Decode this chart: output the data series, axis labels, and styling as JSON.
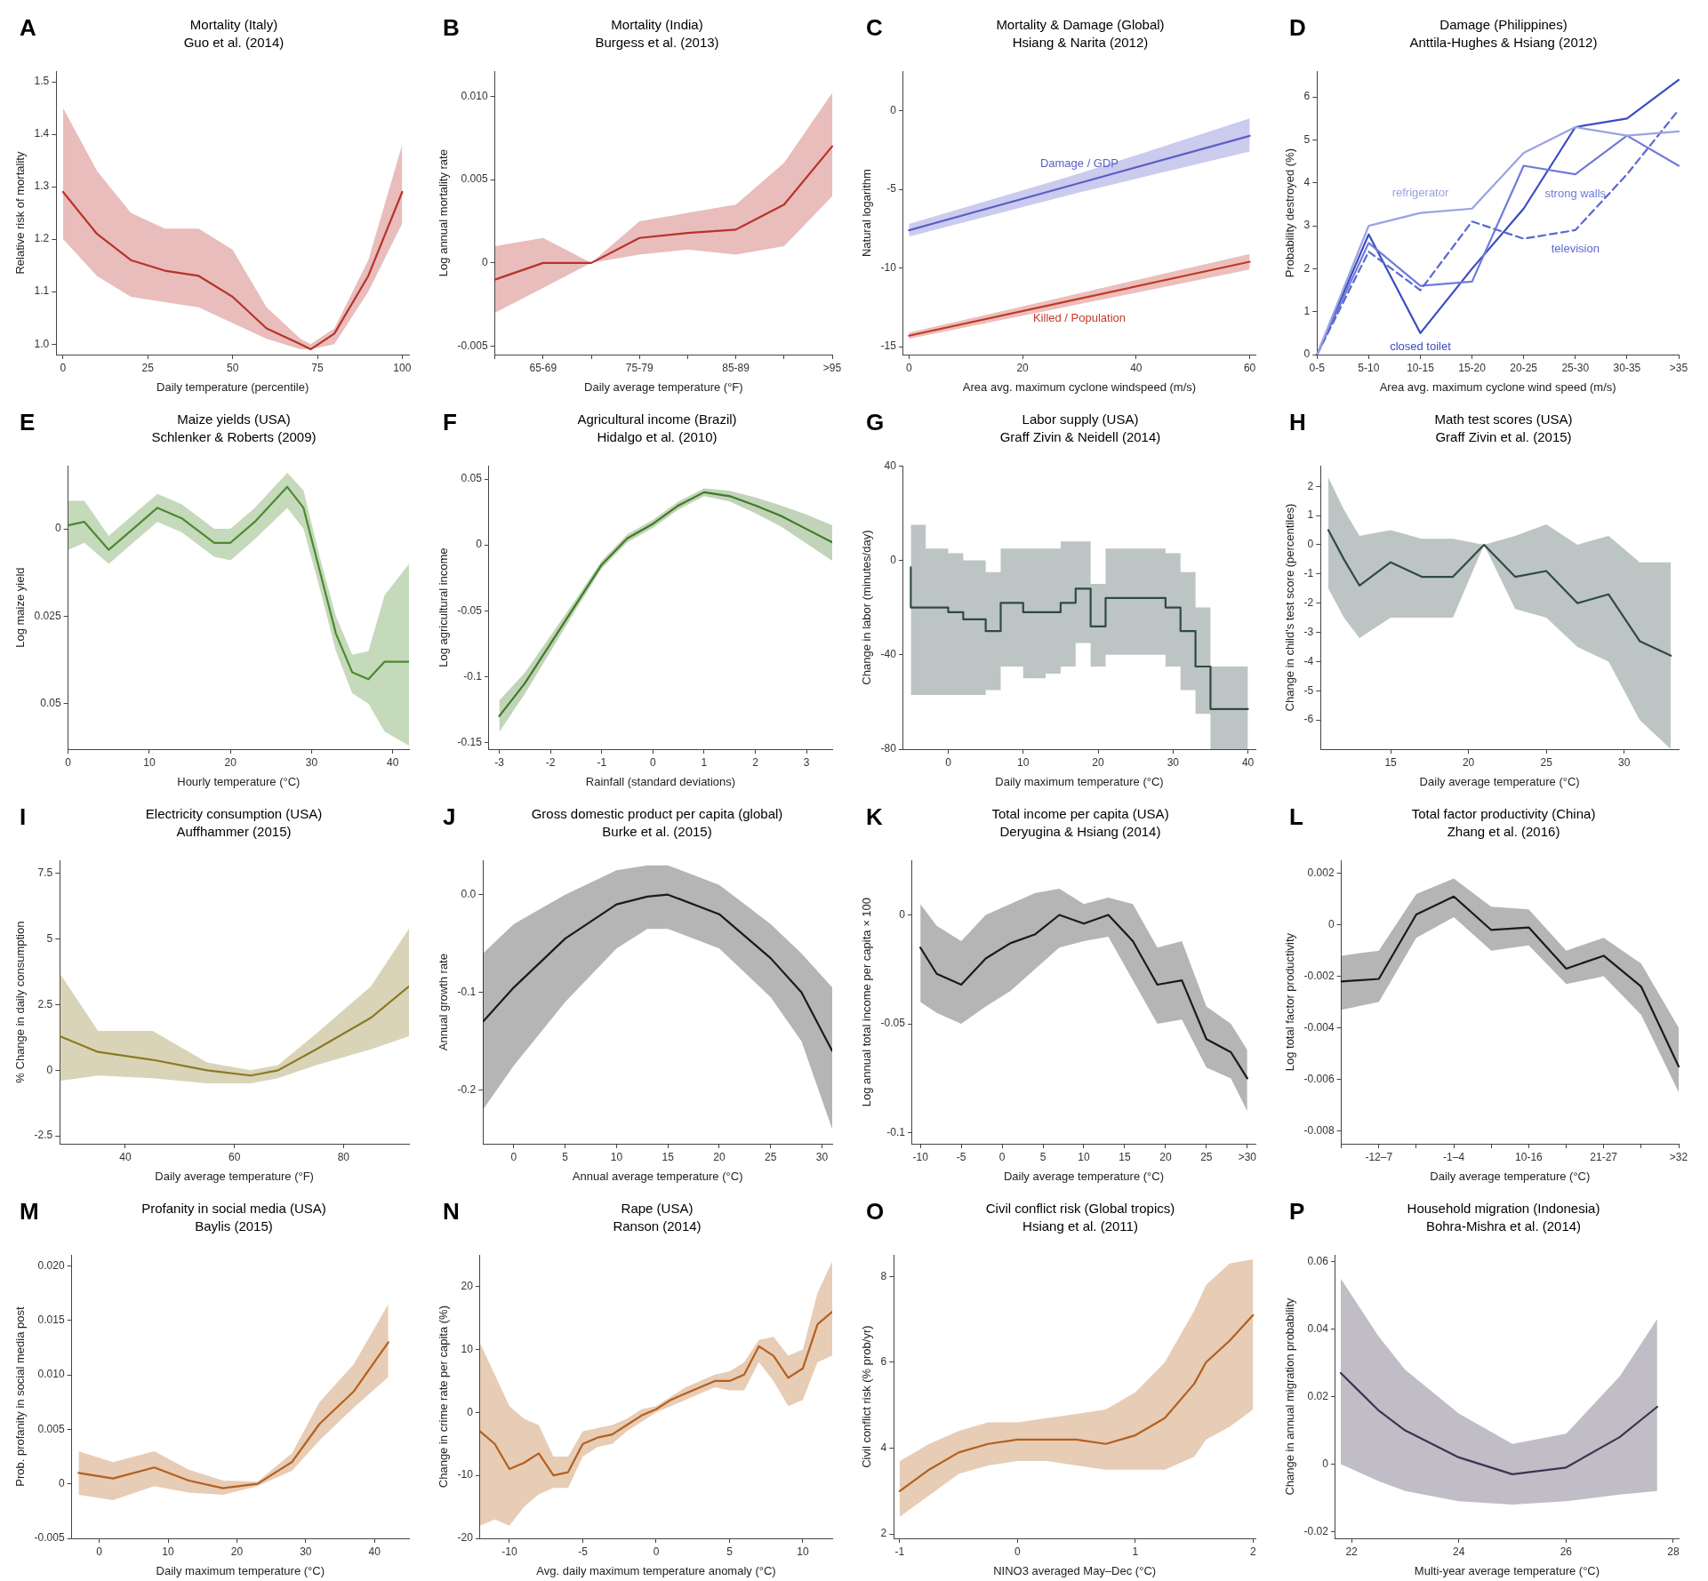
{
  "chart_data": [
    {
      "type": "line",
      "title": "Mortality (Italy)",
      "subtitle": "Guo et al. (2014)",
      "xlabel": "Daily temperature (percentile)",
      "ylabel": "Relative risk of mortality",
      "annotations": [
        "A"
      ],
      "x": [
        0,
        10,
        20,
        30,
        40,
        50,
        60,
        70,
        73,
        80,
        90,
        100
      ],
      "xlim": [
        -2,
        102
      ],
      "xticks": [
        0,
        25,
        50,
        75,
        100
      ],
      "ylim": [
        0.98,
        1.52
      ],
      "yticks": [
        {
          "value": 1,
          "label": "1.0"
        },
        1.1,
        1.2,
        1.3,
        1.4,
        1.5
      ],
      "series": [
        {
          "color": "#b8322c",
          "values": [
            1.29,
            1.21,
            1.16,
            1.14,
            1.13,
            1.09,
            1.03,
            1.0,
            0.99,
            1.02,
            1.13,
            1.29
          ],
          "lower": [
            1.2,
            1.13,
            1.09,
            1.08,
            1.07,
            1.04,
            1.01,
            0.99,
            0.99,
            1.0,
            1.1,
            1.23
          ],
          "upper": [
            1.45,
            1.33,
            1.25,
            1.22,
            1.22,
            1.18,
            1.07,
            1.01,
            1.0,
            1.03,
            1.16,
            1.38
          ]
        }
      ]
    },
    {
      "type": "line",
      "title": "Mortality (India)",
      "subtitle": "Burgess et al. (2013)",
      "xlabel": "Daily average temperature (°F)",
      "ylabel": "Log annual mortality rate",
      "annotations": [
        "B"
      ],
      "categories": [
        null,
        "65-69",
        null,
        "75-79",
        null,
        "85-89",
        null,
        ">95"
      ],
      "ylim": [
        -0.0055,
        0.0115
      ],
      "yticks": [
        -0.005,
        0,
        0.005,
        {
          "value": 0.01,
          "label": "0.010"
        }
      ],
      "series": [
        {
          "color": "#b8322c",
          "values": [
            -0.001,
            0,
            0,
            0.0015,
            0.0018,
            0.002,
            0.0035,
            0.007
          ],
          "lower": [
            -0.003,
            -0.0015,
            0,
            0.0005,
            0.0008,
            0.0005,
            0.001,
            0.004
          ],
          "upper": [
            0.001,
            0.0015,
            0,
            0.0025,
            0.003,
            0.0035,
            0.006,
            0.0102
          ]
        }
      ]
    },
    {
      "type": "line",
      "title": "Mortality & Damage (Global)",
      "subtitle": "Hsiang & Narita (2012)",
      "xlabel": "Area avg. maximum cyclone windspeed (m/s)",
      "ylabel": "Natural logarithm",
      "annotations": [
        "C"
      ],
      "x": [
        0,
        30,
        60
      ],
      "xlim": [
        -1,
        61
      ],
      "xticks": [
        0,
        20,
        40,
        60
      ],
      "ylim": [
        -15.5,
        2.5
      ],
      "yticks": [
        -15,
        -10,
        -5,
        0
      ],
      "series": [
        {
          "name": "Damage / GDP",
          "color": "#5a5ec8",
          "values": [
            -7.6,
            -4.6,
            -1.6
          ],
          "lower": [
            -8.0,
            -5.2,
            -2.6
          ],
          "upper": [
            -7.2,
            -4.0,
            -0.5
          ]
        },
        {
          "name": "Killed / Population",
          "color": "#c0392b",
          "values": [
            -14.3,
            -11.95,
            -9.6
          ],
          "lower": [
            -14.5,
            -12.3,
            -10.1
          ],
          "upper": [
            -14.1,
            -11.6,
            -9.1
          ]
        }
      ]
    },
    {
      "type": "line",
      "title": "Damage (Philippines)",
      "subtitle": "Anttila-Hughes & Hsiang (2012)",
      "xlabel": "Area avg. maximum cyclone wind speed (m/s)",
      "ylabel": "Probability destroyed (%)",
      "annotations": [
        "D"
      ],
      "categories": [
        "0-5",
        "5-10",
        "10-15",
        "15-20",
        "20-25",
        "25-30",
        "30-35",
        ">35"
      ],
      "ylim": [
        0,
        6.6
      ],
      "yticks": [
        0,
        1,
        2,
        3,
        4,
        5,
        6
      ],
      "series": [
        {
          "name": "refrigerator",
          "color": "#9aa2e2",
          "values": [
            0,
            3.0,
            3.3,
            3.4,
            4.7,
            5.3,
            5.1,
            5.2
          ]
        },
        {
          "name": "television",
          "color": "#5a68d2",
          "line_style": "dashed",
          "values": [
            0,
            2.4,
            1.5,
            3.1,
            2.7,
            2.9,
            4.2,
            5.7
          ]
        },
        {
          "name": "strong walls",
          "color": "#6f7bd8",
          "values": [
            0,
            2.6,
            1.6,
            1.7,
            4.4,
            4.2,
            5.1,
            4.4
          ]
        },
        {
          "name": "closed toilet",
          "color": "#3b4bc0",
          "values": [
            0,
            2.8,
            0.5,
            2.0,
            3.4,
            5.3,
            5.5,
            6.4
          ]
        }
      ]
    },
    {
      "type": "line",
      "title": "Maize yields (USA)",
      "subtitle": "Schlenker & Roberts (2009)",
      "xlabel": "Hourly temperature (°C)",
      "ylabel": "Log maize yield",
      "annotations": [
        "E"
      ],
      "x": [
        0,
        2,
        5,
        8,
        11,
        14,
        18,
        20,
        23,
        27,
        29,
        31,
        33,
        35,
        37,
        39,
        42
      ],
      "xlim": [
        0,
        42
      ],
      "xticks": [
        0,
        10,
        20,
        30,
        40
      ],
      "ylim": [
        -0.063,
        0.018
      ],
      "yticks": [
        {
          "value": -0.05,
          "label": "0.05"
        },
        {
          "value": -0.025,
          "label": "0.025"
        },
        0
      ],
      "series": [
        {
          "color": "#4c8a2c",
          "values": [
            0.001,
            0.002,
            -0.006,
            0.0,
            0.006,
            0.003,
            -0.004,
            -0.004,
            0.002,
            0.012,
            0.006,
            -0.012,
            -0.03,
            -0.041,
            -0.043,
            -0.038,
            -0.038
          ],
          "lower": [
            -0.006,
            -0.004,
            -0.01,
            -0.004,
            0.002,
            -0.001,
            -0.008,
            -0.009,
            -0.003,
            0.006,
            0.0,
            -0.017,
            -0.035,
            -0.047,
            -0.05,
            -0.058,
            -0.062
          ],
          "upper": [
            0.008,
            0.008,
            -0.002,
            0.004,
            0.01,
            0.007,
            0.0,
            0.0,
            0.006,
            0.016,
            0.011,
            -0.008,
            -0.025,
            -0.036,
            -0.035,
            -0.019,
            -0.01
          ]
        }
      ]
    },
    {
      "type": "line",
      "title": "Agricultural income (Brazil)",
      "subtitle": "Hidalgo et al. (2010)",
      "xlabel": "Rainfall (standard deviations)",
      "ylabel": "Log agricultural income",
      "annotations": [
        "F"
      ],
      "x": [
        -3,
        -2.5,
        -2,
        -1.5,
        -1,
        -0.5,
        0,
        0.5,
        1,
        1.5,
        2,
        2.5,
        3,
        3.5
      ],
      "xlim": [
        -3.2,
        3.5
      ],
      "xticks": [
        -3,
        -2,
        -1,
        0,
        1,
        2,
        3
      ],
      "ylim": [
        -0.155,
        0.06
      ],
      "yticks": [
        -0.15,
        -0.1,
        -0.05,
        0,
        0.05
      ],
      "series": [
        {
          "color": "#3f7a26",
          "values": [
            -0.13,
            -0.105,
            -0.075,
            -0.045,
            -0.015,
            0.005,
            0.016,
            0.03,
            0.04,
            0.037,
            0.03,
            0.022,
            0.012,
            0.002
          ],
          "lower": [
            -0.142,
            -0.113,
            -0.081,
            -0.049,
            -0.018,
            0.002,
            0.013,
            0.027,
            0.037,
            0.033,
            0.024,
            0.014,
            0.001,
            -0.012
          ],
          "upper": [
            -0.118,
            -0.097,
            -0.069,
            -0.041,
            -0.012,
            0.008,
            0.019,
            0.033,
            0.043,
            0.041,
            0.036,
            0.03,
            0.023,
            0.015
          ]
        }
      ]
    },
    {
      "type": "step",
      "title": "Labor supply (USA)",
      "subtitle": "Graff Zivin & Neidell (2014)",
      "xlabel": "Daily maximum temperature (°C)",
      "ylabel": "Change in labor (minutes/day)",
      "annotations": [
        "G"
      ],
      "x": [
        -5,
        -3,
        0,
        2,
        5,
        7,
        10,
        13,
        15,
        17,
        19,
        21,
        23,
        29,
        31,
        33,
        35,
        37,
        40
      ],
      "xlim": [
        -6,
        41
      ],
      "xticks": [
        0,
        10,
        20,
        30,
        40
      ],
      "ylim": [
        -80,
        40
      ],
      "yticks": [
        -80,
        -40,
        0,
        40
      ],
      "series": [
        {
          "color": "#2f4a44",
          "values": [
            -3,
            -20,
            -20,
            -22,
            -25,
            -30,
            -18,
            -22,
            -22,
            -18,
            -12,
            -28,
            -16,
            -16,
            -20,
            -30,
            -45,
            -63,
            -63
          ],
          "lower": [
            -45,
            -57,
            -57,
            -57,
            -57,
            -55,
            -45,
            -50,
            -48,
            -45,
            -35,
            -45,
            -40,
            -40,
            -45,
            -55,
            -65,
            -80,
            -80
          ],
          "upper": [
            40,
            15,
            5,
            3,
            0,
            -5,
            5,
            5,
            5,
            8,
            8,
            -10,
            5,
            5,
            3,
            -5,
            -20,
            -45,
            -45
          ]
        }
      ]
    },
    {
      "type": "line",
      "title": "Math test scores (USA)",
      "subtitle": "Graff Zivin et al. (2015)",
      "xlabel": "Daily average temperature (°C)",
      "ylabel": "Change in child's test score (percentiles)",
      "annotations": [
        "H"
      ],
      "x": [
        11,
        12,
        13,
        15,
        17,
        19,
        21,
        23,
        25,
        27,
        29,
        31,
        33
      ],
      "xlim": [
        10.5,
        33.5
      ],
      "xticks": [
        15,
        20,
        25,
        30
      ],
      "ylim": [
        -7,
        2.7
      ],
      "yticks": [
        -6,
        -5,
        -4,
        -3,
        -2,
        -1,
        0,
        1,
        2
      ],
      "series": [
        {
          "color": "#2f4a44",
          "values": [
            0.5,
            -0.5,
            -1.4,
            -0.6,
            -1.1,
            -1.1,
            0,
            -1.1,
            -0.9,
            -2.0,
            -1.7,
            -3.3,
            -3.8
          ],
          "lower": [
            -1.5,
            -2.5,
            -3.2,
            -2.5,
            -2.5,
            -2.5,
            0,
            -2.2,
            -2.5,
            -3.5,
            -4,
            -6,
            -7
          ],
          "upper": [
            2.3,
            1.2,
            0.3,
            0.5,
            0.2,
            0.2,
            0,
            0.3,
            0.7,
            0,
            0.3,
            -0.6,
            -0.6
          ]
        }
      ]
    },
    {
      "type": "line",
      "title": "Electricity consumption (USA)",
      "subtitle": "Auffhammer (2015)",
      "xlabel": "Daily average temperature (°F)",
      "ylabel": "% Change in daily consumption",
      "annotations": [
        "I"
      ],
      "x": [
        28,
        35,
        45,
        55,
        63,
        68,
        75,
        85,
        92
      ],
      "xlim": [
        28,
        92
      ],
      "xticks": [
        40,
        60,
        80
      ],
      "ylim": [
        -2.8,
        8
      ],
      "yticks": [
        -2.5,
        0,
        2.5,
        5,
        7.5
      ],
      "series": [
        {
          "color": "#8a7a22",
          "values": [
            1.3,
            0.7,
            0.4,
            0.0,
            -0.2,
            0.0,
            0.8,
            2.0,
            3.2
          ],
          "lower": [
            -0.4,
            -0.2,
            -0.3,
            -0.5,
            -0.5,
            -0.3,
            0.2,
            0.8,
            1.3
          ],
          "upper": [
            3.7,
            1.5,
            1.5,
            0.3,
            0.0,
            0.2,
            1.4,
            3.2,
            5.4
          ]
        }
      ]
    },
    {
      "type": "line",
      "title": "Gross domestic product per capita (global)",
      "subtitle": "Burke et al. (2015)",
      "xlabel": "Annual average temperature (°C)",
      "ylabel": "Annual growth rate",
      "annotations": [
        "J"
      ],
      "x": [
        -3,
        0,
        5,
        10,
        13,
        15,
        20,
        25,
        28,
        31
      ],
      "xlim": [
        -3,
        31
      ],
      "xticks": [
        0,
        5,
        10,
        15,
        20,
        25,
        30
      ],
      "ylim": [
        -0.255,
        0.035
      ],
      "yticks": [
        -0.2,
        -0.1,
        {
          "value": 0,
          "label": "0.0"
        }
      ],
      "series": [
        {
          "color": "#1a1a1a",
          "values": [
            -0.13,
            -0.095,
            -0.045,
            -0.01,
            -0.002,
            0.0,
            -0.02,
            -0.065,
            -0.1,
            -0.16
          ],
          "lower": [
            -0.22,
            -0.175,
            -0.11,
            -0.055,
            -0.035,
            -0.035,
            -0.055,
            -0.105,
            -0.15,
            -0.24
          ],
          "upper": [
            -0.06,
            -0.03,
            0.0,
            0.025,
            0.03,
            0.03,
            0.01,
            -0.03,
            -0.06,
            -0.095
          ]
        }
      ]
    },
    {
      "type": "line",
      "title": "Total income per capita (USA)",
      "subtitle": "Deryugina & Hsiang (2014)",
      "xlabel": "Daily average temperature (°C)",
      "ylabel": "Log annual total income per capita × 100",
      "annotations": [
        "K"
      ],
      "x": [
        -10,
        -8,
        -5,
        -2,
        1,
        4,
        7,
        10,
        13,
        16,
        19,
        22,
        25,
        28,
        30
      ],
      "xlim": [
        -11,
        31
      ],
      "xticks": [
        -10,
        -5,
        0,
        5,
        10,
        15,
        20,
        25,
        {
          "value": 30,
          "label": ">30"
        }
      ],
      "ylim": [
        -0.105,
        0.025
      ],
      "yticks": [
        -0.1,
        -0.05,
        0
      ],
      "series": [
        {
          "color": "#1a1a1a",
          "values": [
            -0.015,
            -0.027,
            -0.032,
            -0.02,
            -0.013,
            -0.009,
            0.0,
            -0.004,
            0.0,
            -0.012,
            -0.032,
            -0.03,
            -0.057,
            -0.063,
            -0.075
          ],
          "lower": [
            -0.04,
            -0.045,
            -0.05,
            -0.042,
            -0.035,
            -0.025,
            -0.015,
            -0.012,
            -0.01,
            -0.03,
            -0.05,
            -0.048,
            -0.07,
            -0.075,
            -0.09
          ],
          "upper": [
            0.005,
            -0.005,
            -0.012,
            0.0,
            0.005,
            0.01,
            0.012,
            0.005,
            0.008,
            0.005,
            -0.015,
            -0.012,
            -0.042,
            -0.05,
            -0.062
          ]
        }
      ]
    },
    {
      "type": "line",
      "title": "Total factor productivity (China)",
      "subtitle": "Zhang et al. (2016)",
      "xlabel": "Daily average temperature (°C)",
      "ylabel": "Log total factor productivity",
      "annotations": [
        "L"
      ],
      "categories": [
        null,
        "-12–7",
        null,
        "-1–4",
        null,
        "10-16",
        null,
        "21-27",
        null,
        ">32"
      ],
      "ylim": [
        -0.0085,
        0.0025
      ],
      "yticks": [
        -0.008,
        -0.006,
        -0.004,
        -0.002,
        0,
        0.002
      ],
      "series": [
        {
          "color": "#1a1a1a",
          "values": [
            -0.0022,
            -0.0021,
            0.0004,
            0.0011,
            -0.0002,
            -0.0001,
            -0.0017,
            -0.0012,
            -0.0024,
            -0.0055
          ],
          "lower": [
            -0.0033,
            -0.003,
            -0.0005,
            0.0003,
            -0.001,
            -0.0008,
            -0.0023,
            -0.002,
            -0.0035,
            -0.0065
          ],
          "upper": [
            -0.0012,
            -0.001,
            0.0012,
            0.0018,
            0.0007,
            0.0006,
            -0.001,
            -0.0005,
            -0.0015,
            -0.004
          ]
        }
      ]
    },
    {
      "type": "line",
      "title": "Profanity in social media (USA)",
      "subtitle": "Baylis (2015)",
      "xlabel": "Daily maximum temperature (°C)",
      "ylabel": "Prob. profanity in social media post",
      "annotations": [
        "M"
      ],
      "x": [
        -3,
        2,
        8,
        13,
        18,
        23,
        28,
        32,
        37,
        42
      ],
      "xlim": [
        -4,
        45
      ],
      "xticks": [
        0,
        10,
        20,
        30,
        40
      ],
      "ylim": [
        -0.005,
        0.021
      ],
      "yticks": [
        -0.005,
        0,
        0.005,
        {
          "value": 0.01,
          "label": "0.010"
        },
        0.015,
        {
          "value": 0.02,
          "label": "0.020"
        }
      ],
      "series": [
        {
          "color": "#b4601c",
          "values": [
            0.001,
            0.0005,
            0.0015,
            0.0003,
            -0.0004,
            0.0,
            0.002,
            0.0055,
            0.0085,
            0.013
          ],
          "lower": [
            -0.001,
            -0.0015,
            -0.0002,
            -0.0008,
            -0.001,
            -0.0002,
            0.0012,
            0.004,
            0.007,
            0.0098
          ],
          "upper": [
            0.003,
            0.002,
            0.003,
            0.0013,
            0.0003,
            0.0002,
            0.0028,
            0.0075,
            0.011,
            0.0165
          ]
        }
      ]
    },
    {
      "type": "line",
      "title": "Rape (USA)",
      "subtitle": "Ranson (2014)",
      "xlabel": "Avg. daily maximum temperature anomaly (°C)",
      "ylabel": "Change in crime rate per capita (%)",
      "annotations": [
        "N"
      ],
      "x": [
        -12,
        -11,
        -10,
        -9,
        -8,
        -7,
        -6,
        -5,
        -4,
        -3,
        -2,
        -1,
        0,
        1,
        2,
        3,
        4,
        5,
        6,
        7,
        8,
        9,
        10,
        11,
        12
      ],
      "xlim": [
        -12,
        12
      ],
      "xticks": [
        -10,
        -5,
        0,
        5,
        10
      ],
      "ylim": [
        -20,
        25
      ],
      "yticks": [
        -20,
        -10,
        0,
        10,
        20
      ],
      "series": [
        {
          "color": "#b4601c",
          "values": [
            -3,
            -5,
            -9,
            -8,
            -6.5,
            -10,
            -9.5,
            -5,
            -4,
            -3.5,
            -2,
            -0.5,
            0.5,
            2,
            3,
            4,
            5,
            5,
            6,
            10.5,
            9,
            5.5,
            7,
            14,
            16
          ],
          "lower": [
            -18,
            -17,
            -18,
            -15,
            -13,
            -12,
            -12,
            -7,
            -5.5,
            -5,
            -3,
            -1.5,
            0,
            1,
            2,
            3,
            4,
            3.5,
            3.5,
            8,
            5,
            1,
            2,
            8,
            9
          ],
          "upper": [
            11,
            6,
            1,
            -1,
            -2,
            -7,
            -7,
            -3,
            -2.5,
            -2,
            -1,
            0.5,
            1,
            2.5,
            4,
            5,
            6,
            6.5,
            8,
            11.5,
            12,
            9,
            10,
            19,
            24
          ]
        }
      ]
    },
    {
      "type": "line",
      "title": "Civil conflict risk (Global tropics)",
      "subtitle": "Hsiang et al. (2011)",
      "xlabel": "NINO3 averaged May–Dec (°C)",
      "ylabel": "Civil conflict risk (% prob/yr)",
      "annotations": [
        "O"
      ],
      "x": [
        -1,
        -0.75,
        -0.5,
        -0.25,
        0,
        0.25,
        0.5,
        0.75,
        1,
        1.25,
        1.5,
        1.6,
        1.8,
        2
      ],
      "xlim": [
        -1.05,
        2.02
      ],
      "xticks": [
        -1,
        0,
        1,
        2
      ],
      "ylim": [
        1.9,
        8.5
      ],
      "yticks": [
        2,
        4,
        6,
        8
      ],
      "series": [
        {
          "color": "#b4601c",
          "values": [
            3.0,
            3.5,
            3.9,
            4.1,
            4.2,
            4.2,
            4.2,
            4.1,
            4.3,
            4.7,
            5.5,
            6.0,
            6.5,
            7.1
          ],
          "lower": [
            2.4,
            2.9,
            3.4,
            3.6,
            3.7,
            3.7,
            3.6,
            3.5,
            3.5,
            3.5,
            3.8,
            4.2,
            4.5,
            4.9
          ],
          "upper": [
            3.7,
            4.1,
            4.4,
            4.6,
            4.6,
            4.7,
            4.8,
            4.9,
            5.3,
            6.0,
            7.2,
            7.8,
            8.3,
            8.4
          ]
        }
      ]
    },
    {
      "type": "line",
      "title": "Household migration (Indonesia)",
      "subtitle": "Bohra-Mishra et al. (2014)",
      "xlabel": "Multi-year average temperature (°C)",
      "ylabel": "Change in annual migration probability",
      "annotations": [
        "P"
      ],
      "x": [
        21.8,
        22.5,
        23,
        24,
        25,
        26,
        27,
        27.7
      ],
      "xlim": [
        21.7,
        28.1
      ],
      "xticks": [
        22,
        24,
        26,
        28
      ],
      "ylim": [
        -0.022,
        0.062
      ],
      "yticks": [
        -0.02,
        0,
        0.02,
        0.04,
        0.06
      ],
      "series": [
        {
          "color": "#3e3350",
          "values": [
            0.027,
            0.016,
            0.01,
            0.002,
            -0.003,
            -0.001,
            0.008,
            0.017
          ],
          "lower": [
            0.0,
            -0.005,
            -0.008,
            -0.011,
            -0.012,
            -0.011,
            -0.009,
            -0.008
          ],
          "upper": [
            0.055,
            0.038,
            0.028,
            0.015,
            0.006,
            0.009,
            0.026,
            0.043
          ]
        }
      ]
    }
  ]
}
